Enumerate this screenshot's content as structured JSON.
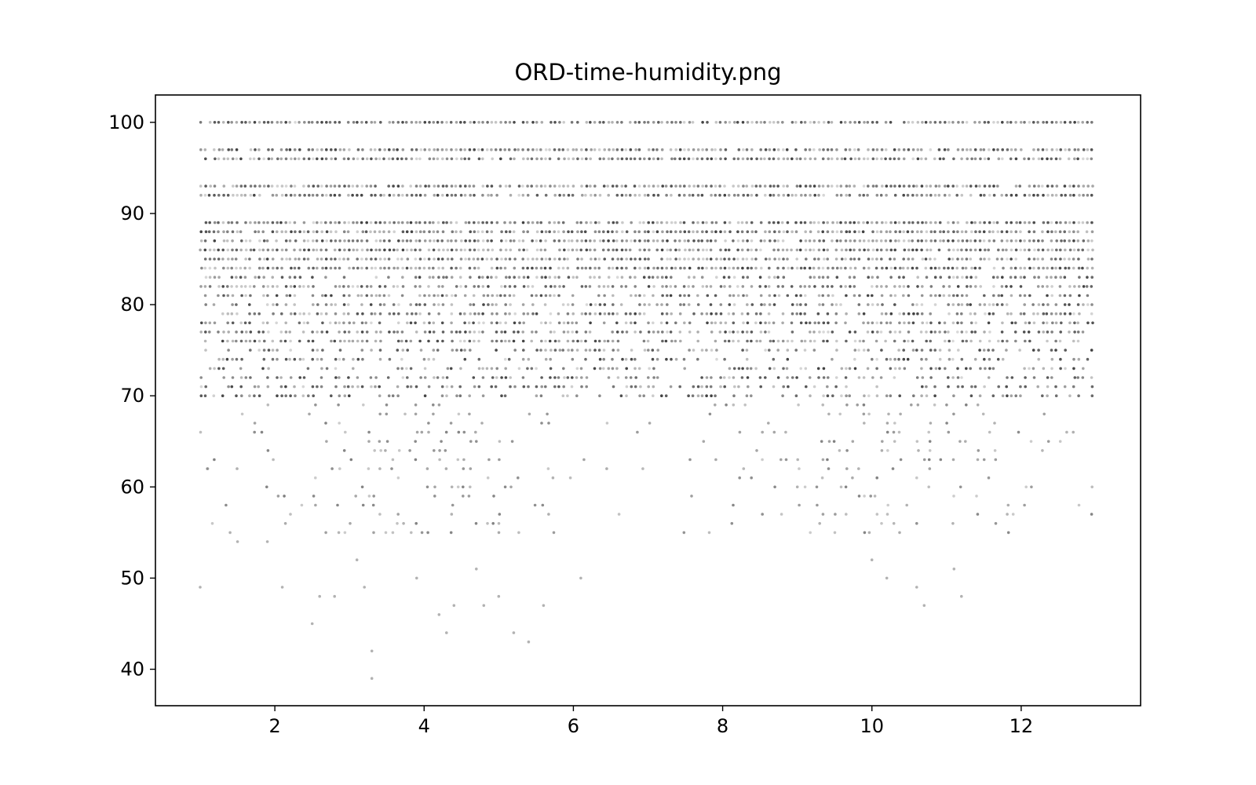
{
  "chart_data": {
    "type": "scatter",
    "title": "ORD-time-humidity.png",
    "xlabel": "",
    "ylabel": "",
    "xlim": [
      0.4,
      13.6
    ],
    "ylim": [
      36,
      103
    ],
    "x_ticks": [
      2,
      4,
      6,
      8,
      10,
      12
    ],
    "y_ticks": [
      40,
      50,
      60,
      70,
      80,
      90,
      100
    ],
    "grid": false,
    "legend": "none",
    "marker_color": "#000000",
    "marker_alpha": 0.25,
    "x_range_of_data": [
      1,
      13
    ],
    "y_range_of_data": [
      39,
      100
    ],
    "dense_humidity_rows": [
      100,
      97,
      96,
      93,
      92,
      89,
      88,
      87,
      86,
      85,
      84,
      83,
      82,
      81,
      80,
      79,
      78,
      77,
      76,
      75,
      74,
      73,
      72,
      71,
      70
    ],
    "sparse_points": [
      {
        "x": 1.0,
        "y": 49
      },
      {
        "x": 1.1,
        "y": 62
      },
      {
        "x": 1.4,
        "y": 55
      },
      {
        "x": 1.5,
        "y": 54
      },
      {
        "x": 1.9,
        "y": 54
      },
      {
        "x": 2.1,
        "y": 49
      },
      {
        "x": 2.5,
        "y": 45
      },
      {
        "x": 2.6,
        "y": 48
      },
      {
        "x": 2.8,
        "y": 48
      },
      {
        "x": 3.1,
        "y": 52
      },
      {
        "x": 3.2,
        "y": 49
      },
      {
        "x": 3.3,
        "y": 42
      },
      {
        "x": 3.3,
        "y": 39
      },
      {
        "x": 3.9,
        "y": 50
      },
      {
        "x": 4.2,
        "y": 46
      },
      {
        "x": 4.3,
        "y": 44
      },
      {
        "x": 4.4,
        "y": 47
      },
      {
        "x": 4.7,
        "y": 51
      },
      {
        "x": 4.8,
        "y": 47
      },
      {
        "x": 5.0,
        "y": 48
      },
      {
        "x": 5.2,
        "y": 44
      },
      {
        "x": 5.4,
        "y": 43
      },
      {
        "x": 5.6,
        "y": 47
      },
      {
        "x": 6.1,
        "y": 50
      },
      {
        "x": 9.0,
        "y": 60
      },
      {
        "x": 9.3,
        "y": 56
      },
      {
        "x": 10.0,
        "y": 52
      },
      {
        "x": 10.2,
        "y": 50
      },
      {
        "x": 10.6,
        "y": 49
      },
      {
        "x": 10.7,
        "y": 47
      },
      {
        "x": 11.1,
        "y": 51
      },
      {
        "x": 11.2,
        "y": 48
      }
    ]
  }
}
